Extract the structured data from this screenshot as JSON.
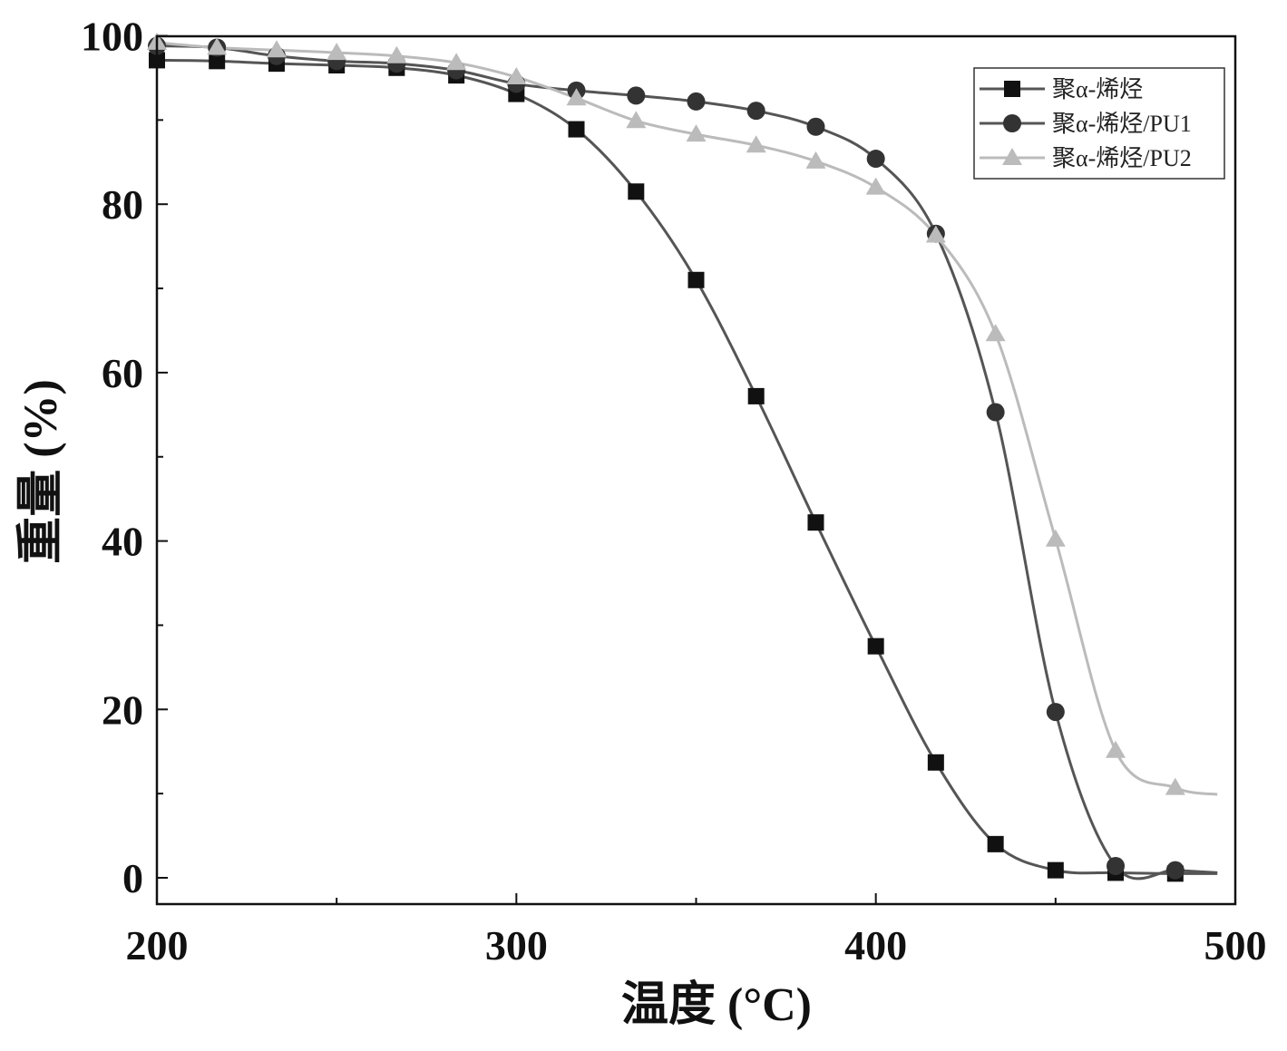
{
  "chart_data": {
    "type": "line",
    "title": "",
    "xlabel": "温度 (°C)",
    "ylabel": "重量 (%)",
    "xlim": [
      200,
      500
    ],
    "ylim": [
      -3,
      100
    ],
    "xticks": [
      200,
      300,
      400,
      500
    ],
    "yticks": [
      0,
      20,
      40,
      60,
      80,
      100
    ],
    "grid": false,
    "legend_position": "top-right",
    "x": [
      200,
      216.7,
      233.3,
      250,
      266.7,
      283.3,
      300,
      316.7,
      333.3,
      350,
      366.7,
      383.3,
      400,
      416.7,
      433.3,
      450,
      466.7,
      483.3
    ],
    "series": [
      {
        "name": "聚α-烯烃",
        "marker": "square",
        "color": "#111111",
        "line_color": "#555555",
        "values": [
          97.1,
          97.0,
          96.7,
          96.5,
          96.2,
          95.3,
          93.1,
          88.9,
          81.5,
          71.0,
          57.2,
          42.2,
          27.5,
          13.7,
          4.0,
          0.9,
          0.6,
          0.5
        ],
        "end_value": 0.5
      },
      {
        "name": "聚α-烯烃/PU1",
        "marker": "circle",
        "color": "#333333",
        "line_color": "#555555",
        "values": [
          98.8,
          98.6,
          97.6,
          97.0,
          96.7,
          95.9,
          94.3,
          93.5,
          92.9,
          92.2,
          91.1,
          89.2,
          85.4,
          76.5,
          55.3,
          19.7,
          1.4,
          0.9
        ],
        "end_value": 0.6
      },
      {
        "name": "聚α-烯烃/PU2",
        "marker": "triangle",
        "color": "#bbbbbb",
        "line_color": "#bbbbbb",
        "values": [
          99.2,
          98.6,
          98.3,
          98.0,
          97.6,
          96.8,
          95.1,
          92.6,
          89.9,
          88.3,
          87.0,
          85.1,
          82.0,
          76.3,
          64.6,
          40.2,
          15.1,
          10.7
        ],
        "end_value": 9.9
      }
    ],
    "x_end": 495
  }
}
